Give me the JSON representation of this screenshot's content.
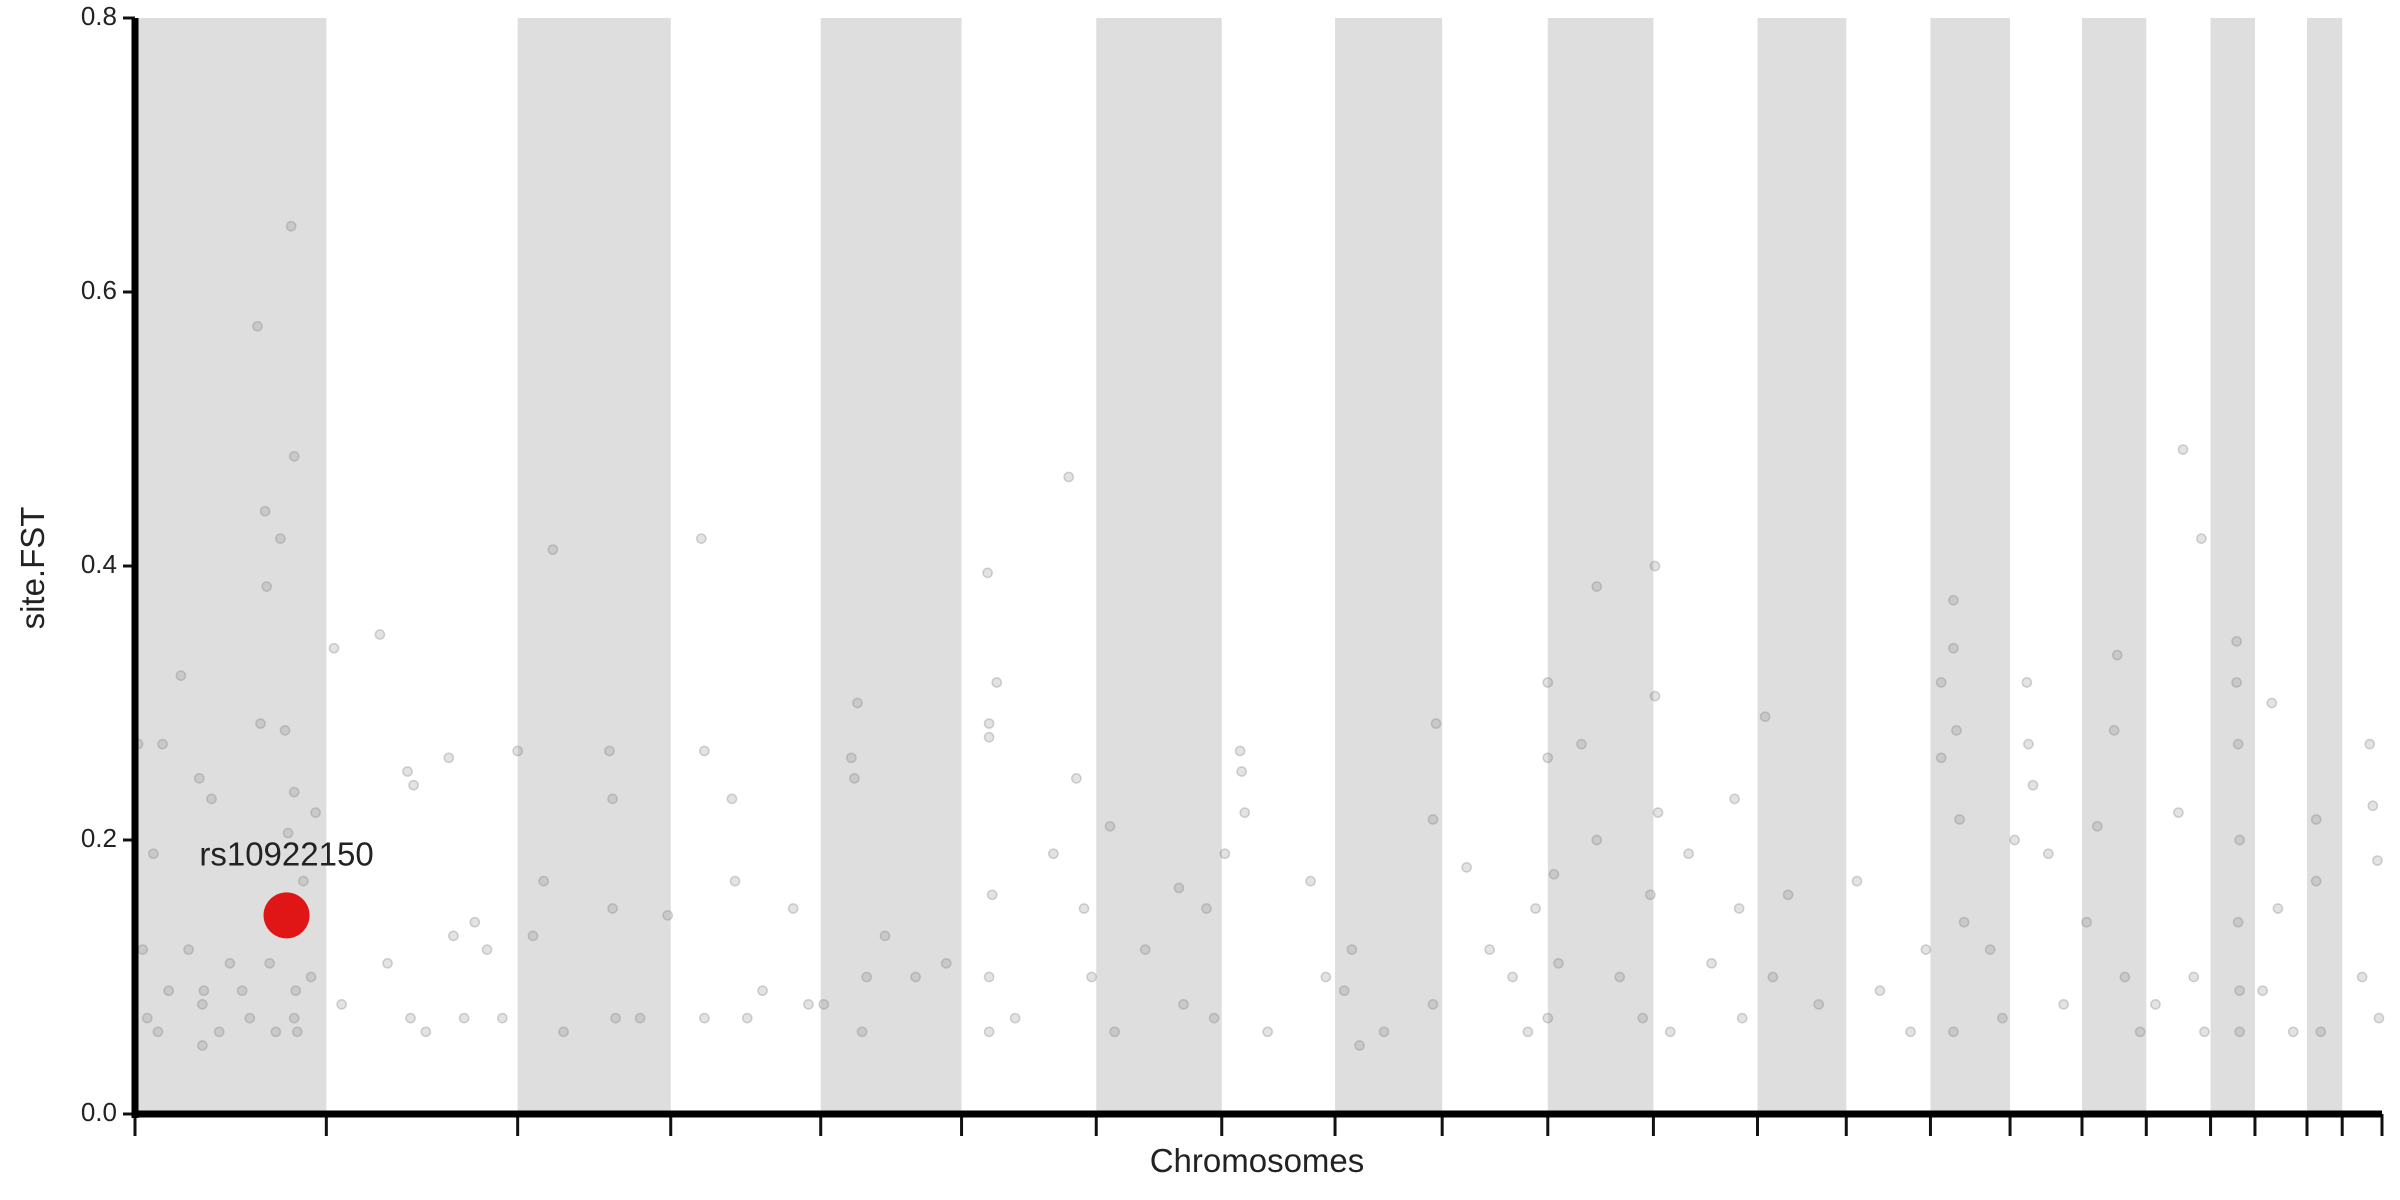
{
  "chart_data": {
    "type": "scatter",
    "xlabel": "Chromosomes",
    "ylabel": "site.FST",
    "xlim": [
      0,
      1468
    ],
    "ylim": [
      0,
      0.8
    ],
    "yticks": [
      {
        "value": 0,
        "label": "0.0"
      },
      0.2,
      0.4,
      0.6,
      0.8
    ],
    "xticks": [
      0,
      125,
      250,
      350,
      448,
      540,
      628,
      710,
      784,
      854,
      923,
      992,
      1060,
      1118,
      1173,
      1225,
      1272,
      1314,
      1356,
      1385,
      1419,
      1442,
      1468
    ],
    "alternate_bands": true,
    "band_color": "#dedede",
    "series": [
      {
        "color": "#808080",
        "x": [
          2,
          5,
          8,
          12,
          18,
          22,
          30,
          35,
          42,
          45,
          50,
          55,
          62,
          70,
          75,
          80,
          82,
          85,
          86,
          88,
          92,
          95,
          98,
          100,
          102,
          104,
          104,
          104,
          105,
          106,
          110,
          115,
          118,
          44,
          44,
          15,
          130,
          135,
          160,
          165,
          178,
          180,
          182,
          190,
          205,
          208,
          215,
          222,
          230,
          240,
          250,
          260,
          267,
          273,
          280,
          310,
          312,
          312,
          314,
          330,
          348,
          370,
          372,
          372,
          390,
          392,
          400,
          410,
          430,
          440,
          450,
          468,
          470,
          472,
          478,
          475,
          490,
          510,
          530,
          557,
          558,
          558,
          558,
          558,
          560,
          563,
          575,
          600,
          610,
          615,
          620,
          625,
          637,
          640,
          660,
          682,
          685,
          700,
          705,
          712,
          722,
          723,
          725,
          740,
          768,
          778,
          790,
          795,
          800,
          816,
          848,
          850,
          848,
          870,
          885,
          900,
          910,
          915,
          923,
          923,
          923,
          927,
          930,
          945,
          955,
          955,
          970,
          985,
          993,
          993,
          995,
          990,
          1003,
          1015,
          1030,
          1045,
          1048,
          1050,
          1065,
          1070,
          1080,
          1100,
          1125,
          1140,
          1160,
          1170,
          1180,
          1180,
          1188,
          1188,
          1190,
          1192,
          1188,
          1195,
          1212,
          1220,
          1228,
          1236,
          1237,
          1240,
          1250,
          1260,
          1275,
          1282,
          1295,
          1293,
          1300,
          1310,
          1320,
          1335,
          1338,
          1345,
          1350,
          1352,
          1373,
          1373,
          1374,
          1375,
          1374,
          1375,
          1375,
          1396,
          1400,
          1410,
          1390,
          1425,
          1425,
          1428,
          1455,
          1460,
          1462,
          1465,
          1466
        ],
        "values": [
          0.27,
          0.12,
          0.07,
          0.19,
          0.27,
          0.09,
          0.32,
          0.12,
          0.245,
          0.09,
          0.23,
          0.06,
          0.11,
          0.09,
          0.07,
          0.575,
          0.285,
          0.44,
          0.385,
          0.11,
          0.06,
          0.42,
          0.28,
          0.205,
          0.648,
          0.48,
          0.235,
          0.07,
          0.09,
          0.06,
          0.17,
          0.1,
          0.22,
          0.05,
          0.08,
          0.06,
          0.34,
          0.08,
          0.35,
          0.11,
          0.25,
          0.07,
          0.24,
          0.06,
          0.26,
          0.13,
          0.07,
          0.14,
          0.12,
          0.07,
          0.265,
          0.13,
          0.17,
          0.412,
          0.06,
          0.265,
          0.23,
          0.15,
          0.07,
          0.07,
          0.145,
          0.42,
          0.265,
          0.07,
          0.23,
          0.17,
          0.07,
          0.09,
          0.15,
          0.08,
          0.08,
          0.26,
          0.245,
          0.3,
          0.1,
          0.06,
          0.13,
          0.1,
          0.11,
          0.395,
          0.285,
          0.275,
          0.1,
          0.06,
          0.16,
          0.315,
          0.07,
          0.19,
          0.465,
          0.245,
          0.15,
          0.1,
          0.21,
          0.06,
          0.12,
          0.165,
          0.08,
          0.15,
          0.07,
          0.19,
          0.265,
          0.25,
          0.22,
          0.06,
          0.17,
          0.1,
          0.09,
          0.12,
          0.05,
          0.06,
          0.215,
          0.285,
          0.08,
          0.18,
          0.12,
          0.1,
          0.06,
          0.15,
          0.315,
          0.26,
          0.07,
          0.175,
          0.11,
          0.27,
          0.385,
          0.2,
          0.1,
          0.07,
          0.4,
          0.305,
          0.22,
          0.16,
          0.06,
          0.19,
          0.11,
          0.23,
          0.15,
          0.07,
          0.29,
          0.1,
          0.16,
          0.08,
          0.17,
          0.09,
          0.06,
          0.12,
          0.315,
          0.26,
          0.375,
          0.34,
          0.28,
          0.215,
          0.06,
          0.14,
          0.12,
          0.07,
          0.2,
          0.315,
          0.27,
          0.24,
          0.19,
          0.08,
          0.14,
          0.21,
          0.335,
          0.28,
          0.1,
          0.06,
          0.08,
          0.22,
          0.485,
          0.1,
          0.42,
          0.06,
          0.345,
          0.315,
          0.27,
          0.2,
          0.14,
          0.09,
          0.06,
          0.3,
          0.15,
          0.06,
          0.09,
          0.215,
          0.17,
          0.06,
          0.1,
          0.27,
          0.225,
          0.185,
          0.07
        ]
      }
    ],
    "annotations": [
      {
        "label": "rs10922150",
        "x": 99,
        "y": 0.145,
        "color": "#e00000"
      }
    ]
  }
}
